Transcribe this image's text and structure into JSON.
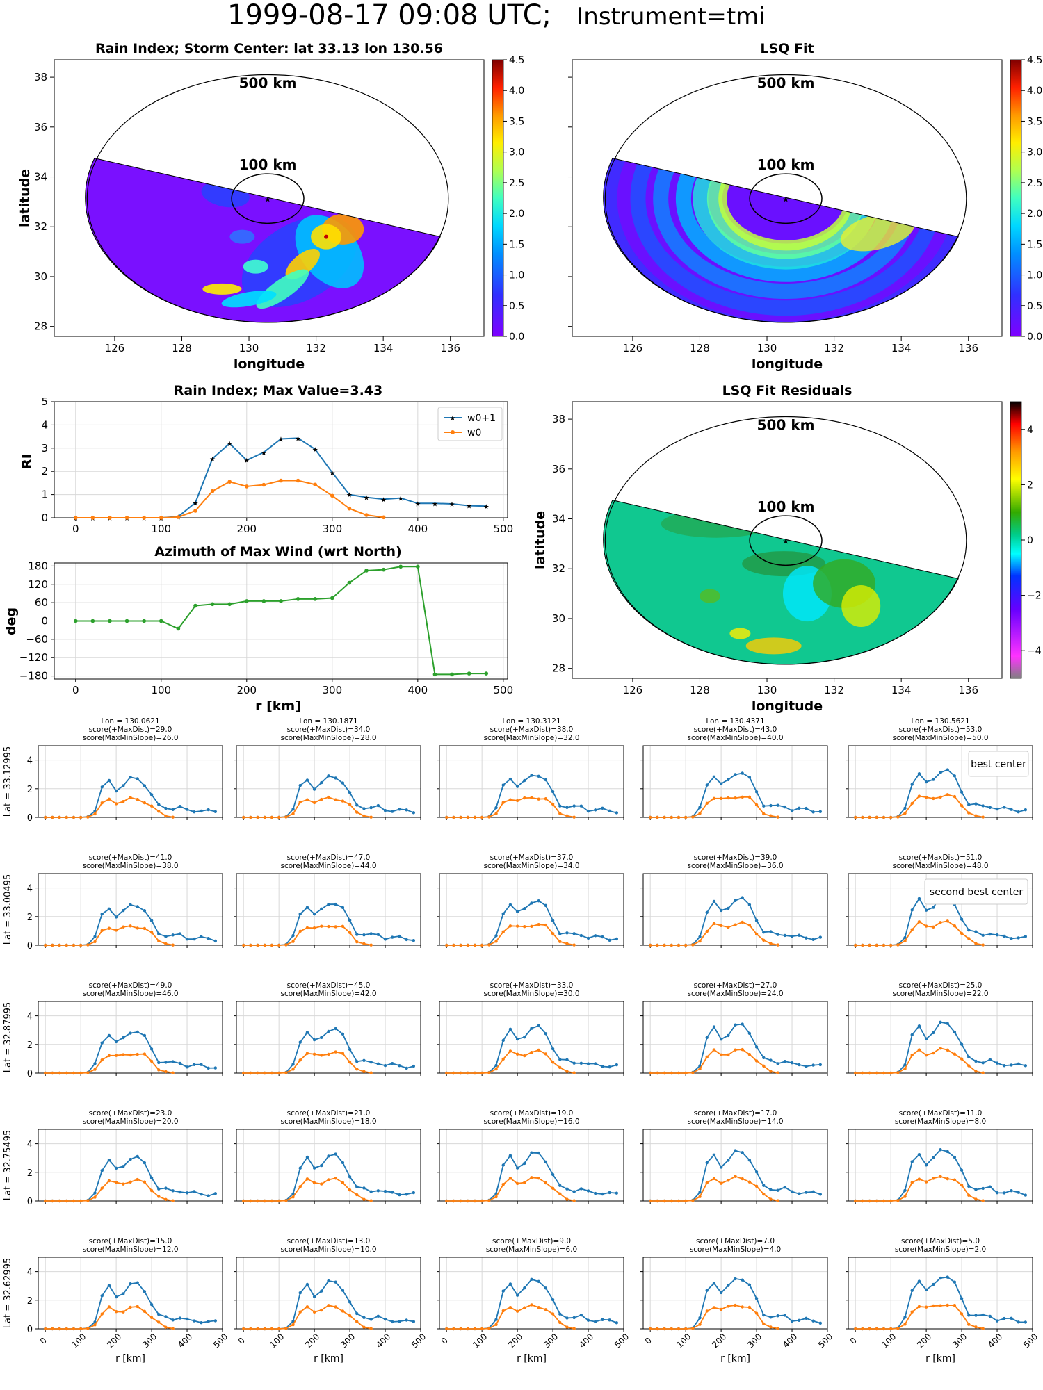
{
  "title": {
    "datetime": "1999-08-17 09:08 UTC;",
    "instrument": "Instrument=tmi"
  },
  "colors": {
    "w0p1": "#1f77b4",
    "w0": "#ff7f0e",
    "azimuth": "#2ca02c",
    "best": "#800080",
    "second": "#ff0000"
  },
  "maps": {
    "rain_index": {
      "title": "Rain Index; Storm Center: lat 33.13 lon 130.56",
      "xlabel": "longitude",
      "ylabel": "latitude",
      "xticks": [
        "126",
        "128",
        "130",
        "132",
        "134",
        "136"
      ],
      "yticks": [
        "28",
        "30",
        "32",
        "34",
        "36",
        "38"
      ],
      "ring_labels": [
        "500 km",
        "100 km"
      ],
      "colorbar_ticks": [
        "0.0",
        "0.5",
        "1.0",
        "1.5",
        "2.0",
        "2.5",
        "3.0",
        "3.5",
        "4.0",
        "4.5"
      ]
    },
    "lsq_fit": {
      "title": "LSQ Fit",
      "xlabel": "longitude",
      "xticks": [
        "126",
        "128",
        "130",
        "132",
        "134",
        "136"
      ],
      "ring_labels": [
        "500 km",
        "100 km"
      ],
      "colorbar_ticks": [
        "0.0",
        "0.5",
        "1.0",
        "1.5",
        "2.0",
        "2.5",
        "3.0",
        "3.5",
        "4.0",
        "4.5"
      ]
    },
    "residuals": {
      "title": "LSQ Fit Residuals",
      "xlabel": "longitude",
      "ylabel": "latitude",
      "xticks": [
        "126",
        "128",
        "130",
        "132",
        "134",
        "136"
      ],
      "yticks": [
        "28",
        "30",
        "32",
        "34",
        "36",
        "38"
      ],
      "ring_labels": [
        "500 km",
        "100 km"
      ],
      "colorbar_ticks": [
        "4",
        "2",
        "0",
        "−2",
        "−4"
      ]
    }
  },
  "chart_data": [
    {
      "type": "line",
      "title": "Rain Index; Max Value=3.43",
      "ylabel": "RI",
      "xlim": [
        -25,
        505
      ],
      "ylim": [
        0,
        5
      ],
      "xticks": [
        "0",
        "100",
        "200",
        "300",
        "400",
        "500"
      ],
      "yticks": [
        "0",
        "1",
        "2",
        "3",
        "4",
        "5"
      ],
      "x": [
        0,
        20,
        40,
        60,
        80,
        100,
        120,
        140,
        160,
        180,
        200,
        220,
        240,
        260,
        280,
        300,
        320,
        340,
        360,
        380,
        400,
        420,
        440,
        460,
        480
      ],
      "series": [
        {
          "name": "w0+1",
          "values": [
            0,
            0,
            0,
            0,
            0,
            0,
            0.05,
            0.65,
            2.55,
            3.2,
            2.48,
            2.82,
            3.4,
            3.43,
            2.95,
            1.95,
            1.0,
            0.88,
            0.8,
            0.85,
            0.62,
            0.62,
            0.6,
            0.52,
            0.5
          ]
        },
        {
          "name": "w0",
          "values": [
            0,
            0,
            0,
            0,
            0,
            0,
            0.03,
            0.3,
            1.15,
            1.55,
            1.35,
            1.42,
            1.6,
            1.6,
            1.43,
            0.95,
            0.4,
            0.12,
            0.02,
            null,
            null,
            null,
            null,
            null,
            null
          ]
        }
      ],
      "legend": "top-right"
    },
    {
      "type": "line",
      "title": "Azimuth of Max Wind (wrt North)",
      "xlabel": "r [km]",
      "ylabel": "deg",
      "xlim": [
        -25,
        505
      ],
      "ylim": [
        -190,
        190
      ],
      "xticks": [
        "0",
        "100",
        "200",
        "300",
        "400",
        "500"
      ],
      "yticks": [
        "180",
        "120",
        "60",
        "0",
        "−60",
        "−120",
        "−180"
      ],
      "x": [
        0,
        20,
        40,
        60,
        80,
        100,
        120,
        140,
        160,
        180,
        200,
        220,
        240,
        260,
        280,
        300,
        320,
        340,
        360,
        380,
        400,
        420,
        440,
        460,
        480
      ],
      "series": [
        {
          "values": [
            0,
            0,
            0,
            0,
            0,
            0,
            -25,
            50,
            55,
            55,
            65,
            65,
            65,
            72,
            72,
            75,
            125,
            165,
            168,
            178,
            178,
            -175,
            -175,
            -172,
            -172
          ]
        }
      ]
    }
  ],
  "grid": {
    "yticks": [
      "0",
      "2",
      "4"
    ],
    "xticks": [
      "0",
      "100",
      "200",
      "300",
      "400",
      "500"
    ],
    "xlabel": "r [km]",
    "row_labels": [
      "Lat = 33.12995",
      "Lat = 33.00495",
      "Lat = 32.87995",
      "Lat = 32.75495",
      "Lat = 32.62995"
    ],
    "lon_labels": [
      "Lon = 130.0621",
      "Lon = 130.1871",
      "Lon = 130.3121",
      "Lon = 130.4371",
      "Lon = 130.5621"
    ],
    "scores": [
      [
        [
          "score(+MaxDist)=29.0",
          "score(MaxMinSlope)=26.0"
        ],
        [
          "score(+MaxDist)=34.0",
          "score(MaxMinSlope)=28.0"
        ],
        [
          "score(+MaxDist)=38.0",
          "score(MaxMinSlope)=32.0"
        ],
        [
          "score(+MaxDist)=43.0",
          "score(MaxMinSlope)=40.0"
        ],
        [
          "score(+MaxDist)=53.0",
          "score(MaxMinSlope)=50.0"
        ]
      ],
      [
        [
          "score(+MaxDist)=41.0",
          "score(MaxMinSlope)=38.0"
        ],
        [
          "score(+MaxDist)=47.0",
          "score(MaxMinSlope)=44.0"
        ],
        [
          "score(+MaxDist)=37.0",
          "score(MaxMinSlope)=34.0"
        ],
        [
          "score(+MaxDist)=39.0",
          "score(MaxMinSlope)=36.0"
        ],
        [
          "score(+MaxDist)=51.0",
          "score(MaxMinSlope)=48.0"
        ]
      ],
      [
        [
          "score(+MaxDist)=49.0",
          "score(MaxMinSlope)=46.0"
        ],
        [
          "score(+MaxDist)=45.0",
          "score(MaxMinSlope)=42.0"
        ],
        [
          "score(+MaxDist)=33.0",
          "score(MaxMinSlope)=30.0"
        ],
        [
          "score(+MaxDist)=27.0",
          "score(MaxMinSlope)=24.0"
        ],
        [
          "score(+MaxDist)=25.0",
          "score(MaxMinSlope)=22.0"
        ]
      ],
      [
        [
          "score(+MaxDist)=23.0",
          "score(MaxMinSlope)=20.0"
        ],
        [
          "score(+MaxDist)=21.0",
          "score(MaxMinSlope)=18.0"
        ],
        [
          "score(+MaxDist)=19.0",
          "score(MaxMinSlope)=16.0"
        ],
        [
          "score(+MaxDist)=17.0",
          "score(MaxMinSlope)=14.0"
        ],
        [
          "score(+MaxDist)=11.0",
          "score(MaxMinSlope)=8.0"
        ]
      ],
      [
        [
          "score(+MaxDist)=15.0",
          "score(MaxMinSlope)=12.0"
        ],
        [
          "score(+MaxDist)=13.0",
          "score(MaxMinSlope)=10.0"
        ],
        [
          "score(+MaxDist)=9.0",
          "score(MaxMinSlope)=6.0"
        ],
        [
          "score(+MaxDist)=7.0",
          "score(MaxMinSlope)=4.0"
        ],
        [
          "score(+MaxDist)=5.0",
          "score(MaxMinSlope)=2.0"
        ]
      ]
    ],
    "annotations": {
      "best": "best center",
      "second": "second best center"
    }
  }
}
